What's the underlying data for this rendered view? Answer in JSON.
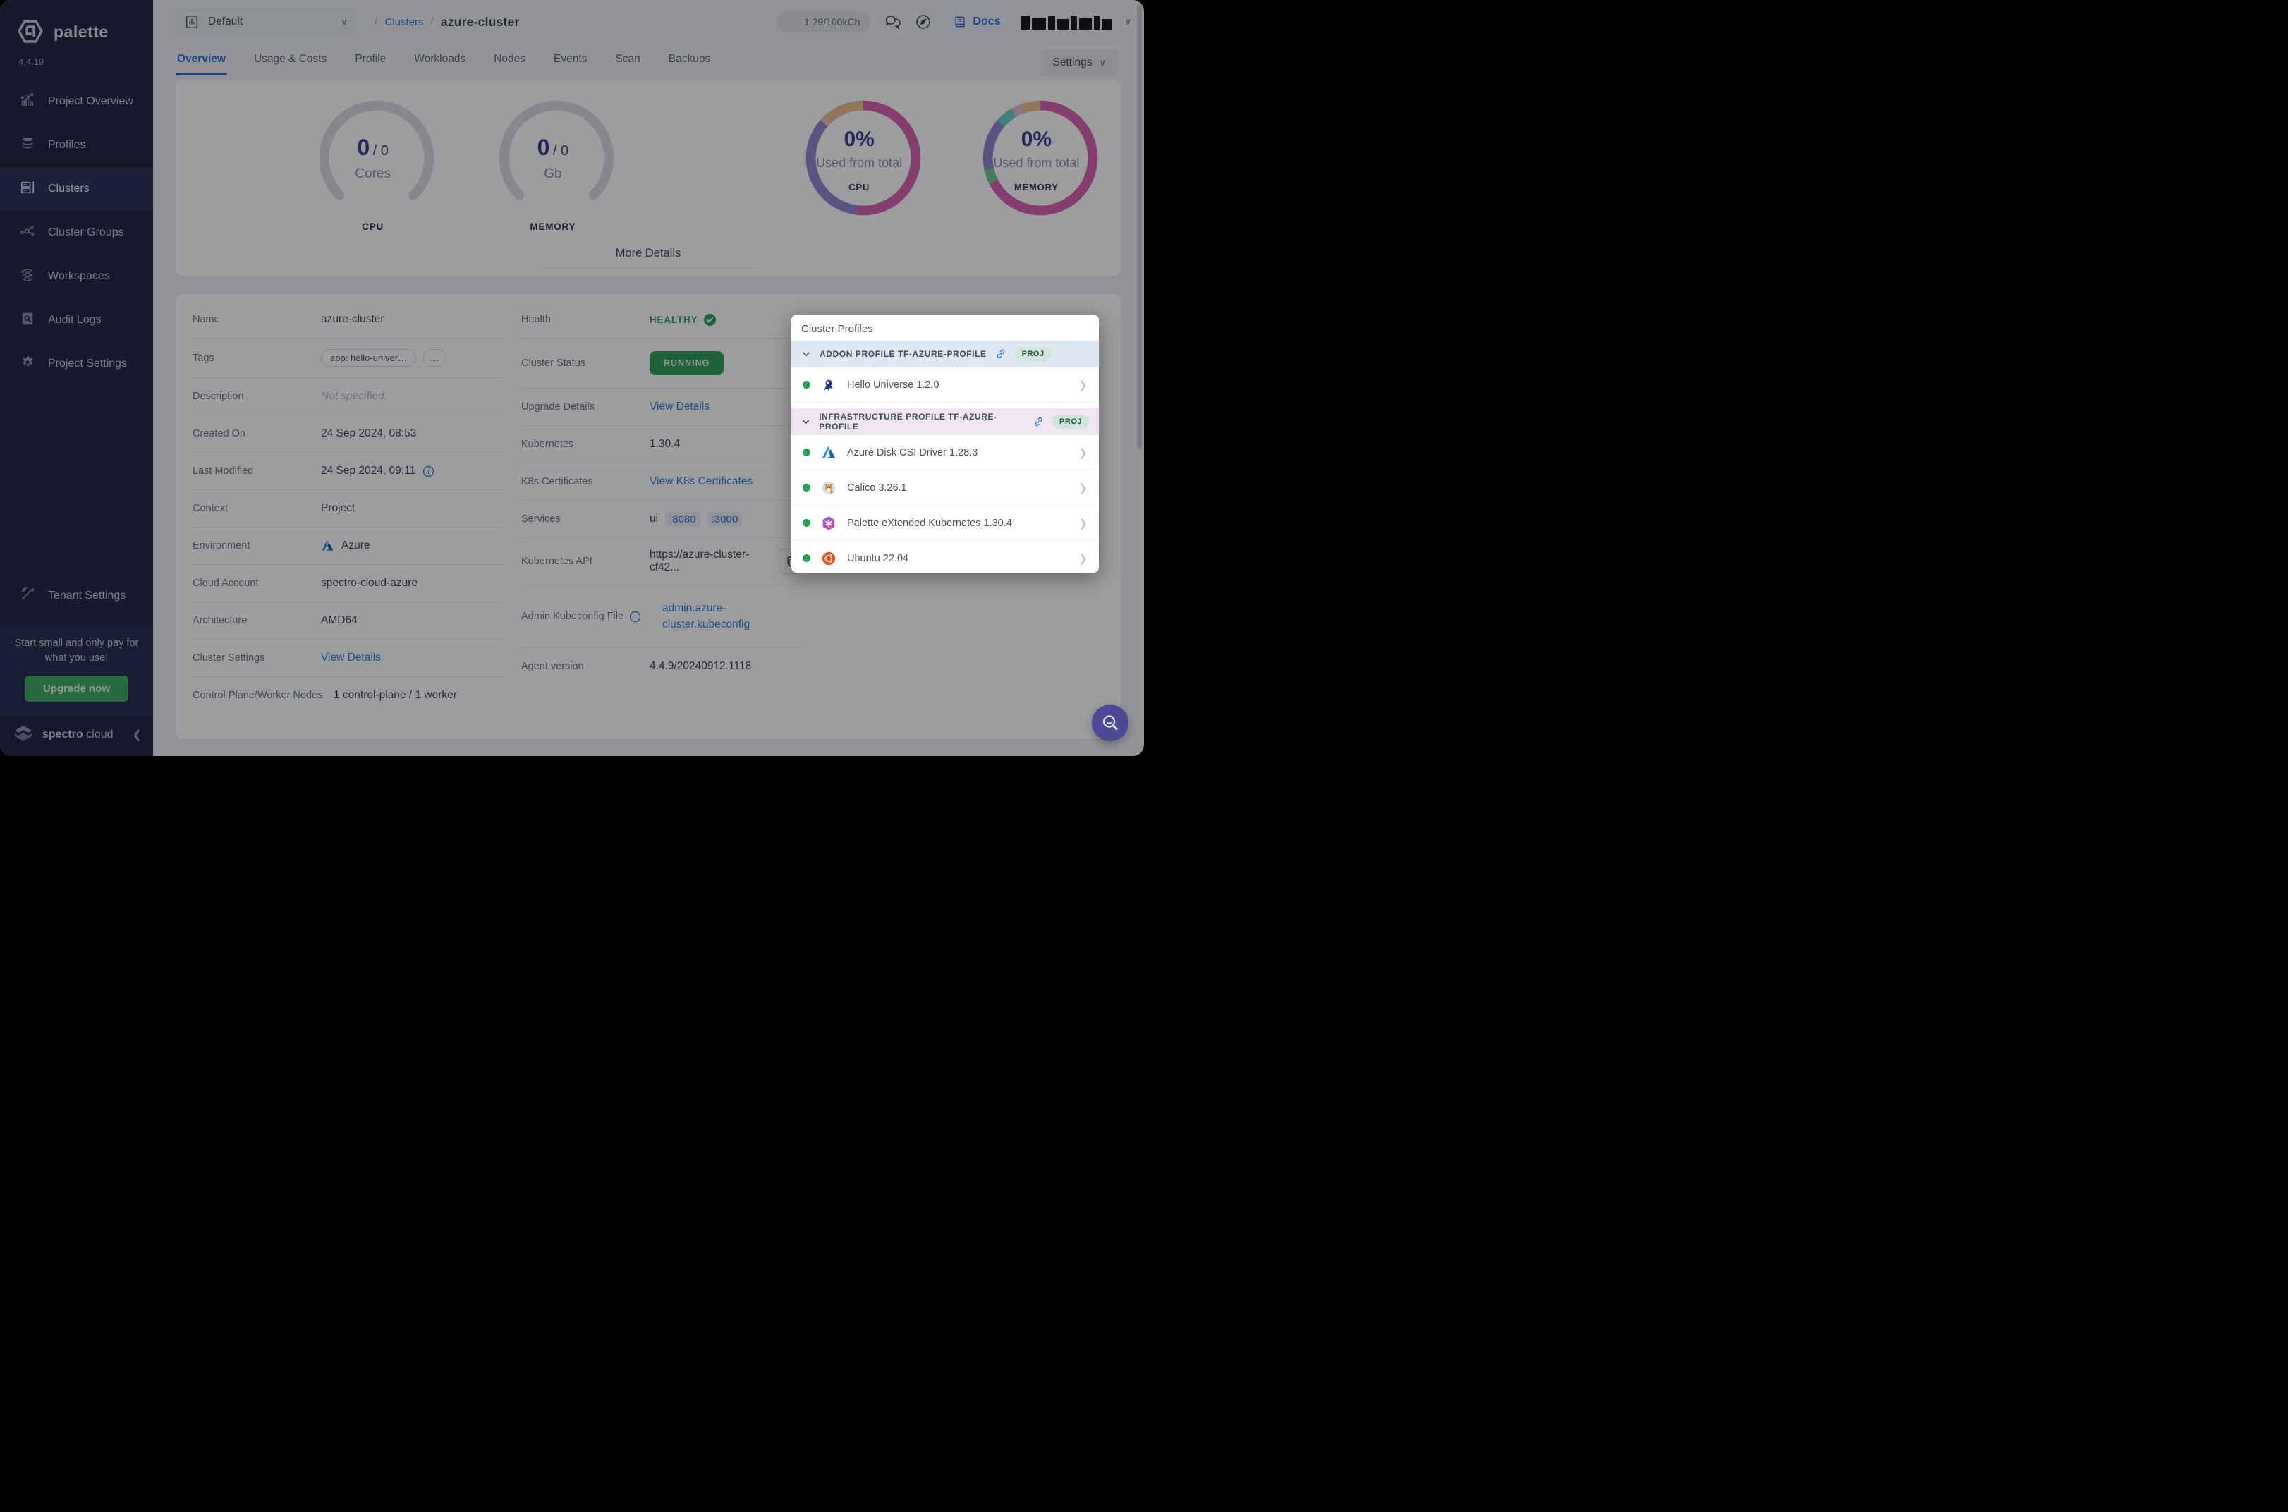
{
  "colors": {
    "accent_blue": "#2e6fd0",
    "link_blue": "#3579d8",
    "green": "#2d9d55",
    "indigo_metric": "#3d3a8f",
    "sidebar_bg": "#20243f",
    "fab_purple": "#4d4896",
    "addon_header_bg": "#dfe9f3",
    "infra_header_bg": "#efe5f3",
    "proj_badge_bg": "#cfe6d8"
  },
  "sidebar": {
    "logo_text": "palette",
    "version": "4.4.19",
    "items": [
      {
        "label": "Project Overview",
        "icon": "chart-icon"
      },
      {
        "label": "Profiles",
        "icon": "layers-icon"
      },
      {
        "label": "Clusters",
        "icon": "server-icon",
        "active": true
      },
      {
        "label": "Cluster Groups",
        "icon": "network-icon"
      },
      {
        "label": "Workspaces",
        "icon": "orbit-icon"
      },
      {
        "label": "Audit Logs",
        "icon": "audit-icon"
      },
      {
        "label": "Project Settings",
        "icon": "gear-icon"
      }
    ],
    "tenant": {
      "label": "Tenant Settings",
      "icon": "tools-icon"
    },
    "promo": {
      "text": "Start small and only pay for what you use!",
      "button_label": "Upgrade now"
    },
    "footer": {
      "brand_bold": "spectro",
      "brand_light": "cloud"
    }
  },
  "topbar": {
    "project_selector": "Default",
    "breadcrumb": {
      "sep1": "/",
      "parent": "Clusters",
      "sep2": "/",
      "current": "azure-cluster"
    },
    "credits": "1.29/100kCh",
    "docs_label": "Docs"
  },
  "tabs": {
    "items": [
      "Overview",
      "Usage & Costs",
      "Profile",
      "Workloads",
      "Nodes",
      "Events",
      "Scan",
      "Backups"
    ],
    "active": "Overview",
    "settings_label": "Settings"
  },
  "overview": {
    "gauges": [
      {
        "used": "0",
        "sep": "/",
        "total": "0",
        "unit": "Cores",
        "label": "CPU"
      },
      {
        "used": "0",
        "sep": "/",
        "total": "0",
        "unit": "Gb",
        "label": "MEMORY"
      }
    ],
    "donuts": [
      {
        "percent": "0%",
        "caption": "Used from total",
        "label": "CPU",
        "segments": [
          {
            "color": "#d75faa",
            "value": 0.52
          },
          {
            "color": "#8f86cf",
            "value": 0.345
          },
          {
            "color": "#f3b8d3",
            "value": 0.012
          },
          {
            "color": "#e8c08e",
            "value": 0.123
          }
        ]
      },
      {
        "percent": "0%",
        "caption": "Used from total",
        "label": "MEMORY",
        "segments": [
          {
            "color": "#d75faa",
            "value": 0.675
          },
          {
            "color": "#6fcb94",
            "value": 0.04
          },
          {
            "color": "#8f86cf",
            "value": 0.15
          },
          {
            "color": "#62cfc5",
            "value": 0.05
          },
          {
            "color": "#e8b8d8",
            "value": 0.03
          },
          {
            "color": "#e8c08e",
            "value": 0.055
          }
        ]
      }
    ],
    "more_details_label": "More Details"
  },
  "details": {
    "left": {
      "name": {
        "label": "Name",
        "value": "azure-cluster"
      },
      "tags": {
        "label": "Tags",
        "tag1": "app: hello-univer…",
        "tag2": "…"
      },
      "description": {
        "label": "Description",
        "value": "Not specified."
      },
      "created": {
        "label": "Created On",
        "value": "24 Sep 2024, 08:53"
      },
      "modified": {
        "label": "Last Modified",
        "value": "24 Sep 2024, 09:11"
      },
      "context": {
        "label": "Context",
        "value": "Project"
      },
      "environment": {
        "label": "Environment",
        "value": "Azure"
      },
      "cloud_account": {
        "label": "Cloud Account",
        "value": "spectro-cloud-azure"
      },
      "architecture": {
        "label": "Architecture",
        "value": "AMD64"
      },
      "cluster_settings": {
        "label": "Cluster Settings",
        "value": "View Details"
      },
      "nodes": {
        "label": "Control Plane/Worker Nodes",
        "value": "1 control-plane / 1 worker"
      }
    },
    "right": {
      "health": {
        "label": "Health",
        "value": "HEALTHY"
      },
      "status": {
        "label": "Cluster Status",
        "value": "RUNNING"
      },
      "upgrade": {
        "label": "Upgrade Details",
        "value": "View Details"
      },
      "kubernetes": {
        "label": "Kubernetes",
        "value": "1.30.4"
      },
      "certs": {
        "label": "K8s Certificates",
        "value": "View K8s Certificates"
      },
      "services": {
        "label": "Services",
        "prefix": "ui",
        "ports": [
          ":8080",
          ":3000"
        ]
      },
      "api": {
        "label": "Kubernetes API",
        "value": "https://azure-cluster-cf42..."
      },
      "kubeconfig": {
        "label": "Admin Kubeconfig File",
        "value": "admin.azure-cluster.kubeconfig"
      },
      "agent": {
        "label": "Agent version",
        "value": "4.4.9/20240912.1118"
      }
    }
  },
  "profiles_panel": {
    "title": "Cluster Profiles",
    "sections": [
      {
        "header": "ADDON PROFILE TF-AZURE-PROFILE",
        "badge": "PROJ",
        "items": [
          {
            "name": "Hello Universe 1.2.0",
            "icon": "hello-universe-icon",
            "status_color": "#27a157"
          }
        ]
      },
      {
        "header": "INFRASTRUCTURE PROFILE TF-AZURE-PROFILE",
        "badge": "PROJ",
        "items": [
          {
            "name": "Azure Disk CSI Driver 1.28.3",
            "icon": "azure-icon",
            "status_color": "#27a157"
          },
          {
            "name": "Calico 3.26.1",
            "icon": "calico-icon",
            "status_color": "#27a157"
          },
          {
            "name": "Palette eXtended Kubernetes 1.30.4",
            "icon": "pxk-icon",
            "status_color": "#27a157"
          },
          {
            "name": "Ubuntu 22.04",
            "icon": "ubuntu-icon",
            "status_color": "#27a157"
          }
        ]
      }
    ]
  }
}
